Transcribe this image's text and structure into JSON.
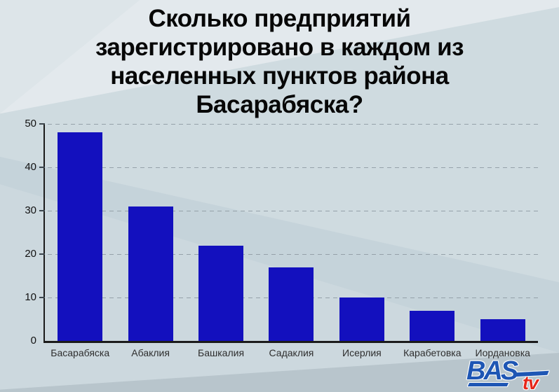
{
  "title": {
    "lines": [
      "Сколько предприятий",
      "зарегистрировано в каждом из",
      "населенных пунктов района",
      "Басарабяска?"
    ]
  },
  "chart_data": {
    "type": "bar",
    "title": "Сколько предприятий зарегистрировано в каждом из населенных пунктов района Басарабяска?",
    "categories": [
      "Басарабяска",
      "Абаклия",
      "Башкалия",
      "Садаклия",
      "Исерлия",
      "Карабетовка",
      "Иордановка"
    ],
    "values": [
      48,
      31,
      22,
      17,
      10,
      7,
      5
    ],
    "xlabel": "",
    "ylabel": "",
    "ylim": [
      0,
      50
    ],
    "yticks": [
      50,
      40,
      30,
      20,
      10,
      0
    ],
    "grid": "horizontal-dashed",
    "legend": "none",
    "bar_color": "#1310be"
  },
  "logo": {
    "text_primary": "BAS",
    "text_secondary": "tv",
    "primary_color": "#1e56b4",
    "secondary_color": "#e52619"
  },
  "colors": {
    "background": "#c5d3da",
    "background_light": "#d9e2e7",
    "gridline": "#95a1a9",
    "axis": "#1b1b1b",
    "bar": "#1310be",
    "tick_label": "#121212",
    "category_label": "#2e2e2e"
  }
}
